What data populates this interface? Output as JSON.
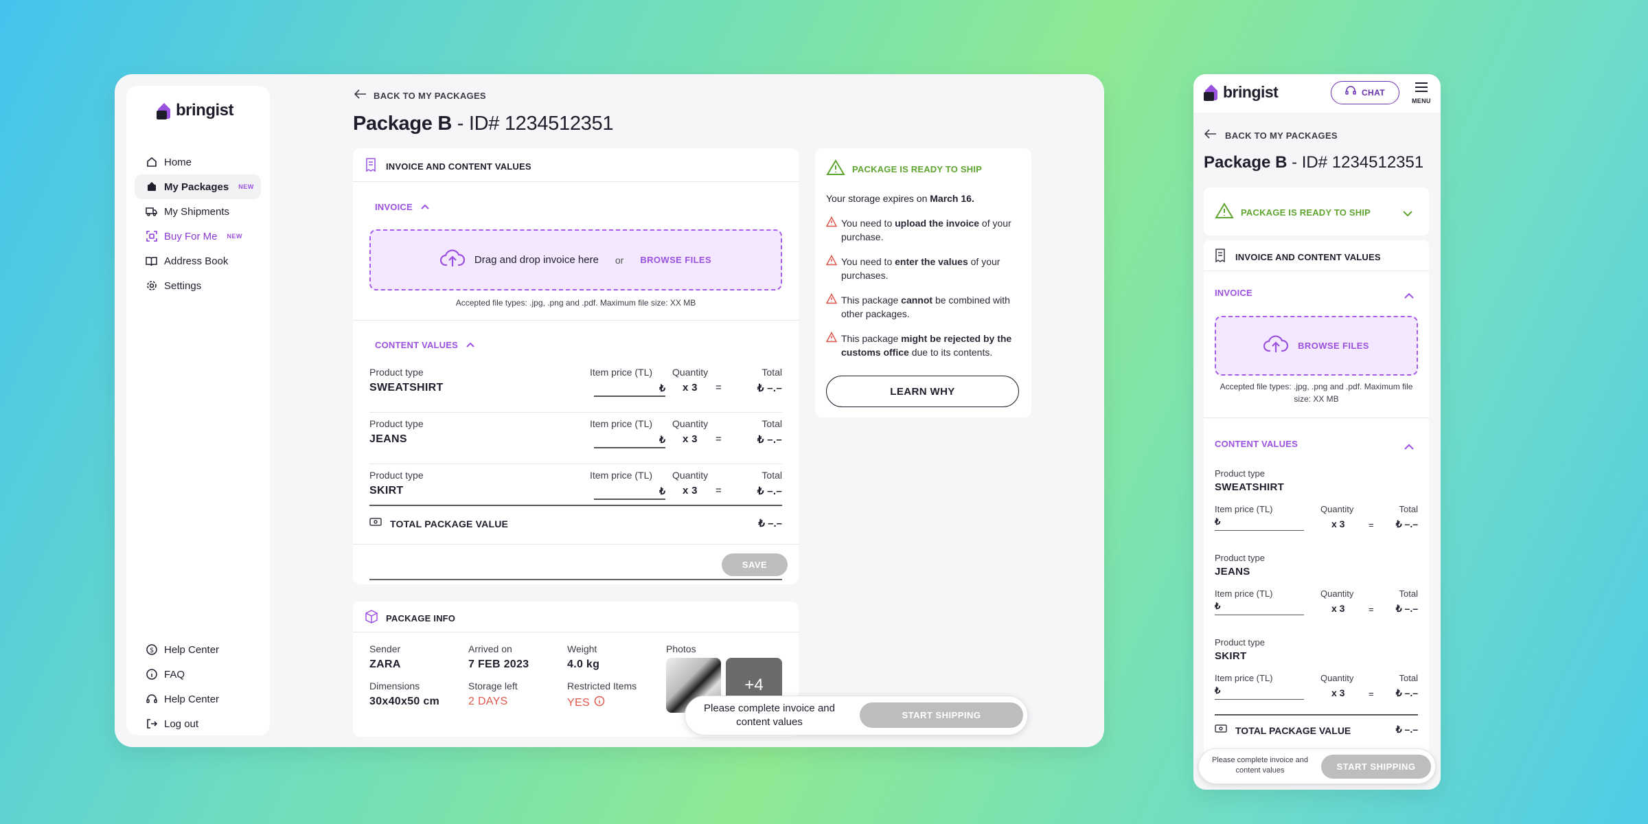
{
  "brand": {
    "name": "bringist"
  },
  "sidebar": {
    "items": [
      {
        "label": "Home",
        "icon": "home-icon"
      },
      {
        "label": "My Packages",
        "icon": "packages-icon",
        "badge": "NEW"
      },
      {
        "label": "My Shipments",
        "icon": "truck-icon"
      },
      {
        "label": "Buy For Me",
        "icon": "scan-icon",
        "badge": "NEW"
      },
      {
        "label": "Address Book",
        "icon": "book-icon"
      },
      {
        "label": "Settings",
        "icon": "gear-icon"
      }
    ],
    "footer": [
      {
        "label": "Help Center",
        "icon": "dollar-icon"
      },
      {
        "label": "FAQ",
        "icon": "info-icon"
      },
      {
        "label": "Help Center",
        "icon": "headset-icon"
      },
      {
        "label": "Log out",
        "icon": "logout-icon"
      }
    ]
  },
  "header": {
    "back_label": "BACK TO MY PACKAGES",
    "package_name": "Package B",
    "package_id": " - ID# 1234512351"
  },
  "invoice_section": {
    "title": "INVOICE AND CONTENT VALUES",
    "invoice_label": "INVOICE",
    "drop_text": "Drag and drop invoice here",
    "or": "or",
    "browse": "BROWSE FILES",
    "accepted": "Accepted file types: .jpg, .png and .pdf. Maximum file size: XX MB",
    "content_label": "CONTENT VALUES",
    "col_product": "Product type",
    "col_price": "Item price (TL)",
    "col_qty": "Quantity",
    "col_total": "Total",
    "currency": "₺",
    "equals": "=",
    "rows": [
      {
        "product": "SWEATSHIRT",
        "qty": "x 3",
        "total": "₺ –.–"
      },
      {
        "product": "JEANS",
        "qty": "x 3",
        "total": "₺ –.–"
      },
      {
        "product": "SKIRT",
        "qty": "x 3",
        "total": "₺ –.–"
      }
    ],
    "total_label": "TOTAL PACKAGE VALUE",
    "total_value": "₺ –.–",
    "save": "SAVE"
  },
  "package_info": {
    "title": "PACKAGE INFO",
    "sender_label": "Sender",
    "sender": "ZARA",
    "arrived_label": "Arrived on",
    "arrived": "7 FEB 2023",
    "weight_label": "Weight",
    "weight": "4.0 kg",
    "photos_label": "Photos",
    "photos_more": "+4",
    "dimensions_label": "Dimensions",
    "dimensions": "30x40x50 cm",
    "storage_label": "Storage left",
    "storage": "2 DAYS",
    "restricted_label": "Restricted Items",
    "restricted": "YES"
  },
  "ready": {
    "title": "PACKAGE IS READY TO SHIP",
    "expiry_prefix": "Your storage expires on ",
    "expiry_date": "March 16.",
    "warnings": [
      {
        "pre": "You need to ",
        "bold": "upload the invoice",
        "post": " of your purchase."
      },
      {
        "pre": "You need to ",
        "bold": "enter the values",
        "post": " of your purchases."
      },
      {
        "pre": "This package ",
        "bold": "cannot",
        "post": " be combined with other packages."
      },
      {
        "pre": "This package ",
        "bold": "might be rejected by the customs office",
        "post": " due to its contents."
      }
    ],
    "learn_why": "LEARN WHY"
  },
  "ship_bar": {
    "message": "Please complete invoice and content values",
    "button": "START SHIPPING"
  },
  "mobile": {
    "chat": "CHAT",
    "menu": "MENU"
  },
  "colors": {
    "accent": "#9b51e0",
    "success": "#5ea52f",
    "danger": "#e0564b",
    "disabled": "#bdbdbd"
  }
}
